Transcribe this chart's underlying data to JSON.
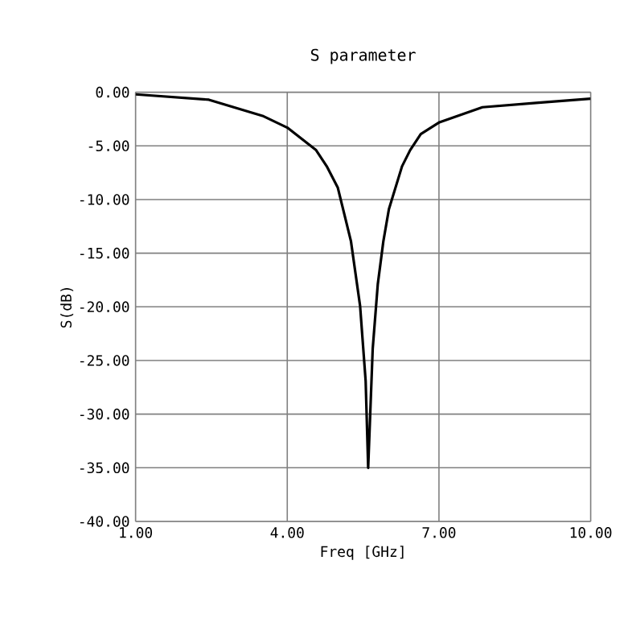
{
  "chart_data": {
    "type": "line",
    "title": "S parameter",
    "xlabel": "Freq [GHz]",
    "ylabel": "S(dB)",
    "x": [
      1.0,
      2.45,
      3.51,
      4.0,
      4.57,
      4.78,
      5.0,
      5.26,
      5.44,
      5.55,
      5.6,
      5.69,
      5.79,
      5.9,
      6.01,
      6.27,
      6.43,
      6.64,
      7.01,
      7.86,
      8.92,
      10.0
    ],
    "series": [
      {
        "color": "#000000",
        "values": [
          -0.2,
          -0.7,
          -2.2,
          -3.3,
          -5.4,
          -6.9,
          -8.9,
          -13.9,
          -19.9,
          -26.9,
          -35.0,
          -23.9,
          -17.9,
          -13.9,
          -10.9,
          -6.9,
          -5.4,
          -3.9,
          -2.8,
          -1.4,
          -1.0,
          -0.6
        ]
      }
    ],
    "xlim": [
      1,
      10
    ],
    "ylim": [
      -40,
      0
    ],
    "xticks": [
      {
        "value": 1,
        "label": "1.00"
      },
      {
        "value": 4,
        "label": "4.00"
      },
      {
        "value": 7,
        "label": "7.00"
      },
      {
        "value": 10,
        "label": "10.00"
      }
    ],
    "yticks": [
      {
        "value": 0,
        "label": "0.00"
      },
      {
        "value": -5,
        "label": "-5.00"
      },
      {
        "value": -10,
        "label": "-10.00"
      },
      {
        "value": -15,
        "label": "-15.00"
      },
      {
        "value": -20,
        "label": "-20.00"
      },
      {
        "value": -25,
        "label": "-25.00"
      },
      {
        "value": -30,
        "label": "-30.00"
      },
      {
        "value": -35,
        "label": "-35.00"
      },
      {
        "value": -40,
        "label": "-40.00"
      }
    ],
    "grid": true
  }
}
